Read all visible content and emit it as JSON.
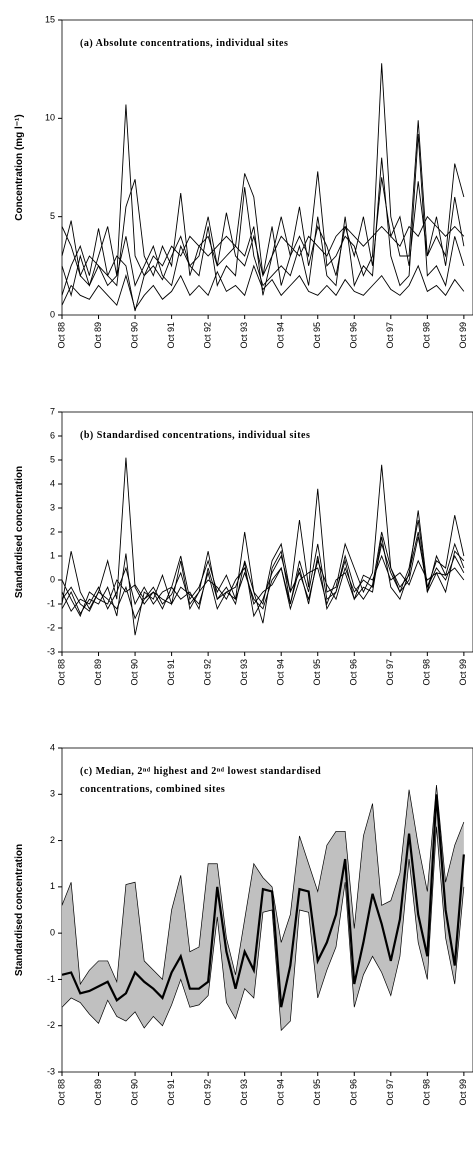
{
  "chart_data": [
    {
      "type": "line",
      "title": "(a) Absolute concentrations, individual sites",
      "ylabel": "Concentration (mg l⁻¹)",
      "x": [
        1988.75,
        1989,
        1989.25,
        1989.5,
        1989.75,
        1990,
        1990.25,
        1990.5,
        1990.75,
        1991,
        1991.25,
        1991.5,
        1991.75,
        1992,
        1992.25,
        1992.5,
        1992.75,
        1993,
        1993.25,
        1993.5,
        1993.75,
        1994,
        1994.25,
        1994.5,
        1994.75,
        1995,
        1995.25,
        1995.5,
        1995.75,
        1996,
        1996.25,
        1996.5,
        1996.75,
        1997,
        1997.25,
        1997.5,
        1997.75,
        1998,
        1998.25,
        1998.5,
        1998.75,
        1999,
        1999.25,
        1999.5,
        1999.75
      ],
      "xlim": [
        1988.75,
        2000.0
      ],
      "xticks": [
        {
          "value": 1988.75,
          "label": "Oct 88"
        },
        {
          "value": 1989.75,
          "label": "Oct 89"
        },
        {
          "value": 1990.75,
          "label": "Oct 90"
        },
        {
          "value": 1991.75,
          "label": "Oct 91"
        },
        {
          "value": 1992.75,
          "label": "Oct 92"
        },
        {
          "value": 1993.75,
          "label": "Oct 93"
        },
        {
          "value": 1994.75,
          "label": "Oct 94"
        },
        {
          "value": 1995.75,
          "label": "Oct 95"
        },
        {
          "value": 1996.75,
          "label": "Oct 96"
        },
        {
          "value": 1997.75,
          "label": "Oct 97"
        },
        {
          "value": 1998.75,
          "label": "Oct 98"
        },
        {
          "value": 1999.75,
          "label": "Oct 99"
        }
      ],
      "ylim": [
        0,
        15
      ],
      "yticks": [
        0,
        5,
        10,
        15
      ],
      "series": [
        {
          "color": "#000000",
          "values": [
            3.0,
            4.8,
            2.0,
            1.5,
            3.0,
            4.5,
            2.0,
            10.7,
            3.0,
            2.0,
            2.5,
            1.8,
            3.0,
            4.0,
            2.5,
            3.0,
            5.0,
            2.5,
            3.0,
            3.5,
            7.2,
            6.0,
            2.0,
            3.0,
            5.0,
            3.0,
            4.0,
            3.0,
            7.3,
            2.5,
            3.0,
            4.0,
            3.5,
            2.0,
            3.0,
            12.8,
            5.0,
            3.0,
            3.0,
            9.9,
            3.0,
            4.0,
            3.0,
            7.7,
            6.0
          ]
        },
        {
          "color": "#000000",
          "values": [
            1.0,
            2.5,
            3.5,
            2.0,
            4.4,
            2.0,
            1.5,
            5.5,
            6.9,
            3.0,
            2.0,
            3.5,
            2.5,
            6.2,
            2.0,
            3.5,
            4.0,
            2.5,
            5.2,
            3.0,
            2.5,
            4.0,
            2.0,
            4.5,
            1.5,
            3.0,
            5.5,
            2.5,
            4.5,
            3.5,
            2.0,
            4.5,
            3.0,
            5.0,
            2.5,
            7.0,
            4.0,
            5.0,
            2.5,
            6.8,
            3.0,
            5.0,
            2.5,
            6.0,
            3.5
          ]
        },
        {
          "color": "#000000",
          "values": [
            0.5,
            1.5,
            1.0,
            0.8,
            1.5,
            1.0,
            0.5,
            2.0,
            0.3,
            1.0,
            1.5,
            0.8,
            1.2,
            2.0,
            1.0,
            1.5,
            1.0,
            2.2,
            1.2,
            1.5,
            1.0,
            2.5,
            1.3,
            1.8,
            1.0,
            1.5,
            2.0,
            1.2,
            1.0,
            1.5,
            1.0,
            1.8,
            1.2,
            1.0,
            1.5,
            2.0,
            1.3,
            1.0,
            1.5,
            2.5,
            1.2,
            1.5,
            1.0,
            1.8,
            1.2
          ]
        },
        {
          "color": "#000000",
          "values": [
            4.5,
            3.5,
            2.0,
            3.0,
            2.5,
            2.0,
            3.0,
            2.5,
            0.2,
            2.0,
            3.0,
            2.5,
            3.5,
            3.0,
            4.0,
            3.5,
            3.0,
            3.5,
            4.0,
            3.5,
            3.0,
            4.5,
            1.0,
            3.0,
            4.0,
            3.5,
            3.0,
            4.0,
            3.5,
            3.0,
            4.0,
            4.5,
            4.0,
            3.5,
            4.0,
            4.5,
            4.0,
            3.5,
            4.5,
            4.0,
            5.0,
            4.5,
            4.0,
            4.5,
            4.0
          ]
        },
        {
          "color": "#000000",
          "values": [
            2.5,
            1.0,
            3.0,
            1.5,
            2.5,
            1.5,
            2.0,
            4.0,
            1.5,
            2.5,
            3.5,
            2.0,
            1.5,
            3.5,
            2.5,
            2.0,
            4.5,
            1.5,
            2.5,
            2.0,
            6.5,
            3.0,
            1.5,
            2.0,
            2.5,
            2.0,
            3.5,
            1.5,
            5.0,
            2.0,
            1.5,
            5.0,
            1.5,
            2.5,
            2.0,
            8.0,
            3.0,
            1.5,
            2.0,
            9.2,
            2.0,
            2.5,
            1.5,
            4.0,
            2.5
          ]
        }
      ]
    },
    {
      "type": "line",
      "title": "(b) Standardised concentrations, individual sites",
      "ylabel": "Standardised concentration",
      "x": [
        1988.75,
        1989,
        1989.25,
        1989.5,
        1989.75,
        1990,
        1990.25,
        1990.5,
        1990.75,
        1991,
        1991.25,
        1991.5,
        1991.75,
        1992,
        1992.25,
        1992.5,
        1992.75,
        1993,
        1993.25,
        1993.5,
        1993.75,
        1994,
        1994.25,
        1994.5,
        1994.75,
        1995,
        1995.25,
        1995.5,
        1995.75,
        1996,
        1996.25,
        1996.5,
        1996.75,
        1997,
        1997.25,
        1997.5,
        1997.75,
        1998,
        1998.25,
        1998.5,
        1998.75,
        1999,
        1999.25,
        1999.5,
        1999.75
      ],
      "xlim": [
        1988.75,
        2000.0
      ],
      "xticks": [
        {
          "value": 1988.75,
          "label": "Oct 88"
        },
        {
          "value": 1989.75,
          "label": "Oct 89"
        },
        {
          "value": 1990.75,
          "label": "Oct 90"
        },
        {
          "value": 1991.75,
          "label": "Oct 91"
        },
        {
          "value": 1992.75,
          "label": "Oct 92"
        },
        {
          "value": 1993.75,
          "label": "Oct 93"
        },
        {
          "value": 1994.75,
          "label": "Oct 94"
        },
        {
          "value": 1995.75,
          "label": "Oct 95"
        },
        {
          "value": 1996.75,
          "label": "Oct 96"
        },
        {
          "value": 1997.75,
          "label": "Oct 97"
        },
        {
          "value": 1998.75,
          "label": "Oct 98"
        },
        {
          "value": 1999.75,
          "label": "Oct 99"
        }
      ],
      "ylim": [
        -3,
        7
      ],
      "yticks": [
        -3,
        -2,
        -1,
        0,
        1,
        2,
        3,
        4,
        5,
        6,
        7
      ],
      "series": [
        {
          "color": "#000000",
          "values": [
            -1.0,
            1.2,
            -0.5,
            -1.2,
            -0.5,
            0.8,
            -0.8,
            5.1,
            -0.3,
            -1.0,
            -0.5,
            -1.2,
            -0.3,
            1.0,
            -0.8,
            -0.3,
            0.8,
            -0.5,
            0.2,
            -0.8,
            2.0,
            -0.5,
            -1.0,
            0.8,
            1.5,
            -0.5,
            2.5,
            -0.3,
            3.8,
            -0.5,
            -0.3,
            1.5,
            0.5,
            -0.5,
            0.3,
            4.8,
            0.5,
            -0.3,
            0.2,
            2.9,
            -0.3,
            0.8,
            0.5,
            2.7,
            1.0
          ]
        },
        {
          "color": "#000000",
          "values": [
            -1.2,
            -0.5,
            -1.4,
            -0.8,
            -1.0,
            -0.3,
            -1.5,
            1.1,
            -2.3,
            -0.5,
            -0.8,
            0.2,
            -1.0,
            0.8,
            -1.2,
            -0.5,
            1.2,
            -0.8,
            -0.3,
            -1.0,
            0.8,
            -0.5,
            -1.8,
            0.5,
            1.2,
            -1.0,
            0.8,
            -0.5,
            1.5,
            -0.8,
            -0.5,
            1.0,
            -0.3,
            -0.8,
            -0.2,
            2.0,
            0.5,
            -0.5,
            0.5,
            2.5,
            -0.5,
            1.0,
            0.2,
            1.5,
            0.5
          ]
        },
        {
          "color": "#000000",
          "values": [
            -0.5,
            -1.3,
            -0.8,
            -1.0,
            -0.3,
            -1.2,
            -0.5,
            0.5,
            -1.0,
            -0.3,
            -1.0,
            -0.5,
            -0.3,
            -0.8,
            -0.5,
            -1.2,
            0.5,
            -0.8,
            -0.5,
            -0.3,
            0.7,
            -1.5,
            -0.8,
            0.3,
            1.0,
            -0.5,
            0.3,
            -0.8,
            0.8,
            -0.2,
            -0.8,
            0.5,
            -0.5,
            0.0,
            -0.3,
            1.5,
            0.3,
            -0.5,
            0.0,
            1.8,
            -0.3,
            0.5,
            0.0,
            1.0,
            0.3
          ]
        },
        {
          "color": "#000000",
          "values": [
            0.0,
            -0.8,
            -1.5,
            -0.5,
            -0.8,
            -1.0,
            0.0,
            -0.5,
            -0.2,
            -0.8,
            -0.3,
            -1.0,
            -0.6,
            0.3,
            -1.0,
            -0.5,
            0.0,
            -0.3,
            -0.8,
            0.0,
            0.5,
            -1.0,
            -0.5,
            -0.2,
            0.5,
            -1.2,
            0.0,
            0.3,
            0.5,
            -1.0,
            0.0,
            0.3,
            -0.8,
            0.2,
            0.0,
            1.0,
            0.0,
            0.3,
            -0.2,
            0.8,
            0.0,
            0.3,
            0.2,
            0.5,
            0.0
          ]
        },
        {
          "color": "#000000",
          "values": [
            -0.8,
            -0.3,
            -1.0,
            -1.3,
            -0.5,
            -0.8,
            -1.2,
            -0.3,
            -1.6,
            -0.8,
            -0.5,
            -0.8,
            -1.0,
            -0.3,
            -0.6,
            -1.0,
            0.3,
            -1.2,
            -0.5,
            -0.8,
            0.3,
            -0.8,
            -1.2,
            0.0,
            0.5,
            -1.0,
            0.5,
            -1.0,
            1.0,
            -1.2,
            -0.5,
            0.8,
            -0.8,
            -0.3,
            -0.5,
            1.8,
            -0.3,
            -0.8,
            0.3,
            2.0,
            -0.5,
            0.3,
            -0.5,
            1.2,
            0.8
          ]
        }
      ]
    },
    {
      "type": "band",
      "title_lines": [
        "(c) Median, 2ⁿᵈ highest and 2ⁿᵈ lowest standardised",
        "concentrations, combined sites"
      ],
      "ylabel": "Standardised concentration",
      "x": [
        1988.75,
        1989,
        1989.25,
        1989.5,
        1989.75,
        1990,
        1990.25,
        1990.5,
        1990.75,
        1991,
        1991.25,
        1991.5,
        1991.75,
        1992,
        1992.25,
        1992.5,
        1992.75,
        1993,
        1993.25,
        1993.5,
        1993.75,
        1994,
        1994.25,
        1994.5,
        1994.75,
        1995,
        1995.25,
        1995.5,
        1995.75,
        1996,
        1996.25,
        1996.5,
        1996.75,
        1997,
        1997.25,
        1997.5,
        1997.75,
        1998,
        1998.25,
        1998.5,
        1998.75,
        1999,
        1999.25,
        1999.5,
        1999.75
      ],
      "xlim": [
        1988.75,
        2000.0
      ],
      "xticks": [
        {
          "value": 1988.75,
          "label": "Oct 88"
        },
        {
          "value": 1989.75,
          "label": "Oct 89"
        },
        {
          "value": 1990.75,
          "label": "Oct 90"
        },
        {
          "value": 1991.75,
          "label": "Oct 91"
        },
        {
          "value": 1992.75,
          "label": "Oct 92"
        },
        {
          "value": 1993.75,
          "label": "Oct 93"
        },
        {
          "value": 1994.75,
          "label": "Oct 94"
        },
        {
          "value": 1995.75,
          "label": "Oct 95"
        },
        {
          "value": 1996.75,
          "label": "Oct 96"
        },
        {
          "value": 1997.75,
          "label": "Oct 97"
        },
        {
          "value": 1998.75,
          "label": "Oct 98"
        },
        {
          "value": 1999.75,
          "label": "Oct 99"
        }
      ],
      "ylim": [
        -3,
        4
      ],
      "yticks": [
        -3,
        -2,
        -1,
        0,
        1,
        2,
        3,
        4
      ],
      "band": {
        "color": "#c0c0c0",
        "upper": [
          0.6,
          1.1,
          -1.1,
          -0.8,
          -0.6,
          -0.6,
          -1.05,
          1.05,
          1.1,
          -0.6,
          -0.8,
          -1.0,
          0.5,
          1.25,
          -0.4,
          -0.3,
          1.5,
          1.5,
          -0.1,
          -0.9,
          0.3,
          1.5,
          1.2,
          1.0,
          -0.2,
          0.4,
          2.1,
          1.5,
          0.9,
          1.9,
          2.2,
          2.2,
          0.1,
          2.1,
          2.8,
          0.6,
          0.7,
          1.3,
          3.1,
          1.9,
          0.9,
          3.2,
          1.1,
          1.9,
          2.4
        ],
        "lower": [
          -1.6,
          -1.4,
          -1.5,
          -1.75,
          -1.95,
          -1.45,
          -1.8,
          -1.9,
          -1.7,
          -2.05,
          -1.8,
          -2.0,
          -1.55,
          -1.0,
          -1.6,
          -1.55,
          -1.35,
          0.35,
          -1.5,
          -1.85,
          -1.2,
          -1.4,
          0.45,
          0.5,
          -2.1,
          -1.9,
          0.5,
          0.45,
          -1.4,
          -0.8,
          -0.3,
          1.1,
          -1.6,
          -0.9,
          -0.5,
          -0.85,
          -1.35,
          -0.5,
          1.6,
          -0.2,
          -1.0,
          2.3,
          -0.1,
          -1.1,
          1.0
        ]
      },
      "series": [
        {
          "color": "#000000",
          "values": [
            -0.9,
            -0.85,
            -1.3,
            -1.25,
            -1.15,
            -1.05,
            -1.45,
            -1.3,
            -0.85,
            -1.05,
            -1.2,
            -1.4,
            -0.85,
            -0.5,
            -1.2,
            -1.2,
            -1.05,
            1.0,
            -0.4,
            -1.2,
            -0.4,
            -0.8,
            0.95,
            0.9,
            -1.6,
            -0.7,
            0.95,
            0.9,
            -0.6,
            -0.2,
            0.4,
            1.6,
            -1.1,
            -0.2,
            0.85,
            0.2,
            -0.6,
            0.3,
            2.15,
            0.4,
            -0.5,
            3.0,
            0.5,
            -0.7,
            1.7
          ]
        }
      ]
    }
  ]
}
